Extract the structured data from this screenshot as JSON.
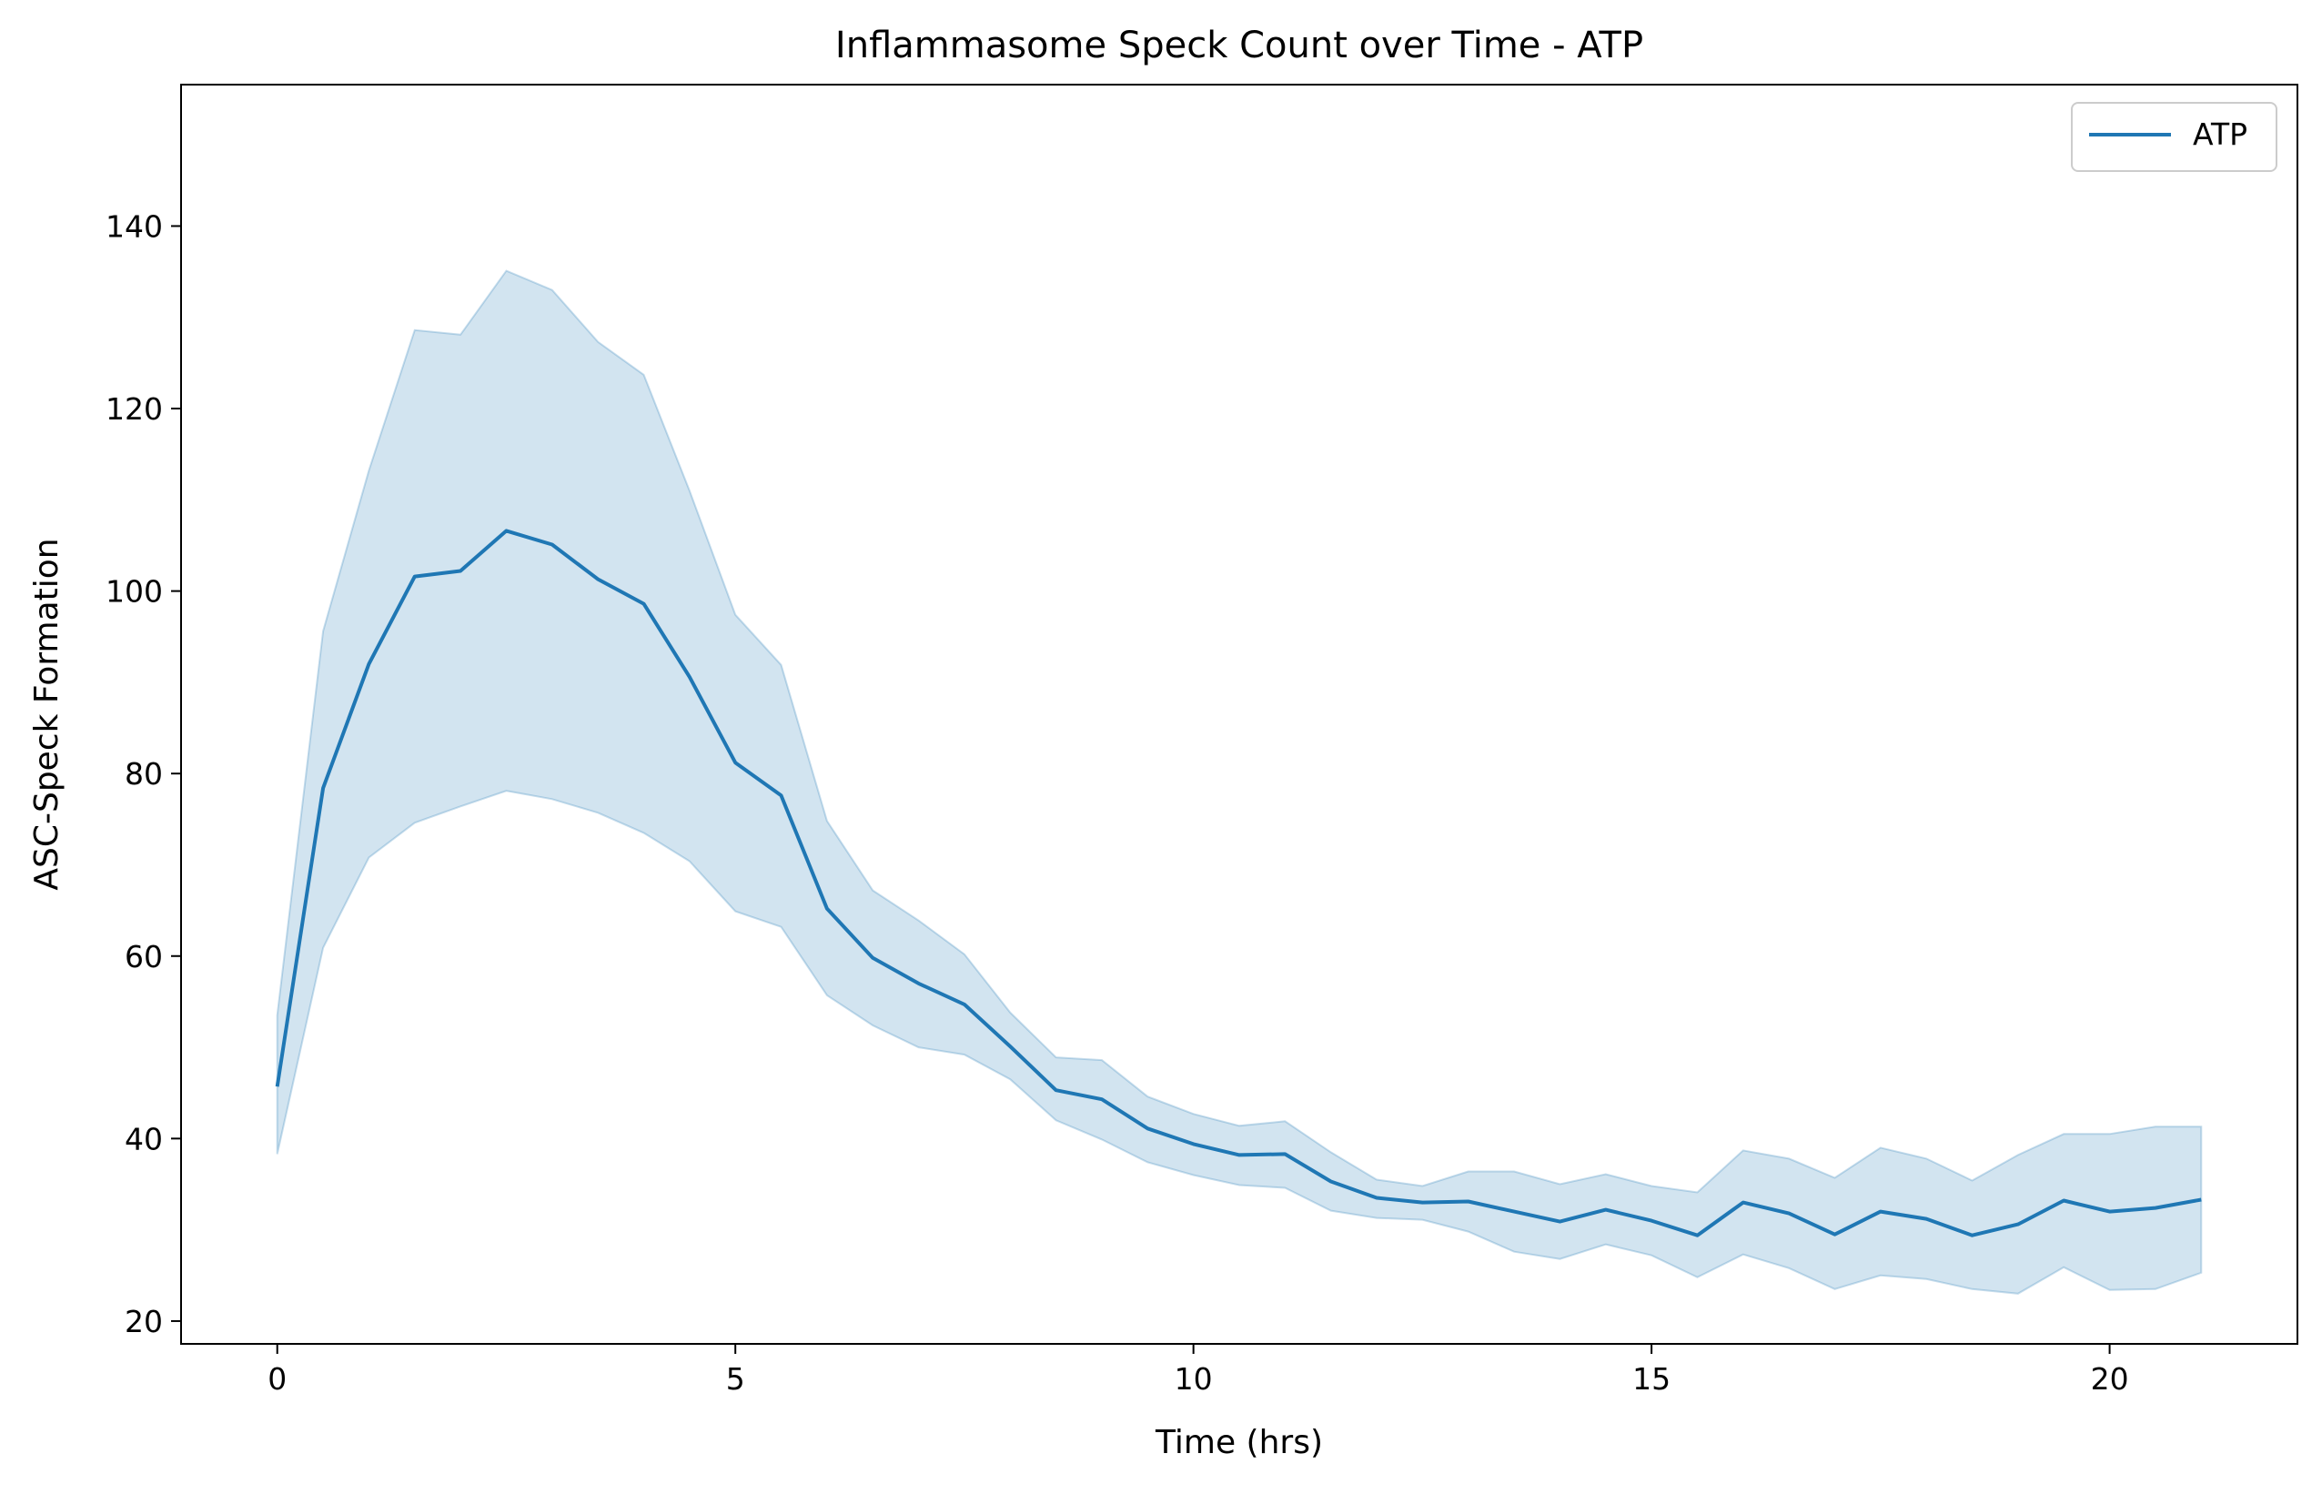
{
  "chart_data": {
    "type": "line",
    "title": "Inflammasome Speck Count over Time - ATP",
    "xlabel": "Time (hrs)",
    "ylabel": "ASC-Speck Formation",
    "xlim": [
      -1.05,
      22.05
    ],
    "ylim": [
      17.5,
      155.5
    ],
    "xticks": [
      0,
      5,
      10,
      15,
      20
    ],
    "yticks": [
      20,
      40,
      60,
      80,
      100,
      120,
      140
    ],
    "grid": false,
    "legend": "top-right",
    "colors": {
      "line": "#1f77b4",
      "band": "#1f77b4",
      "band_opacity": 0.2
    },
    "series": [
      {
        "name": "ATP",
        "x": [
          0,
          0.5,
          1,
          1.5,
          2,
          2.5,
          3,
          3.5,
          4,
          4.5,
          5,
          5.5,
          6,
          6.5,
          7,
          7.5,
          8,
          8.5,
          9,
          9.5,
          10,
          10.5,
          11,
          11.5,
          12,
          12.5,
          13,
          13.5,
          14,
          14.5,
          15,
          15.5,
          16,
          16.5,
          17,
          17.5,
          18,
          18.5,
          19,
          19.5,
          20,
          20.5,
          21
        ],
        "y": [
          45.7,
          78.4,
          92.0,
          101.6,
          102.2,
          106.6,
          105.1,
          101.3,
          98.6,
          90.6,
          81.2,
          77.6,
          65.2,
          59.8,
          57.0,
          54.7,
          50.1,
          45.3,
          44.3,
          41.1,
          39.4,
          38.2,
          38.3,
          35.3,
          33.5,
          33.0,
          33.1,
          32.0,
          30.9,
          32.2,
          31.0,
          29.4,
          33.0,
          31.8,
          29.5,
          32.0,
          31.2,
          29.4,
          30.6,
          33.2,
          32.0,
          32.4,
          33.3
        ],
        "ci_upper": [
          53.5,
          95.6,
          113.2,
          128.6,
          128.1,
          135.1,
          133.0,
          127.3,
          123.7,
          111.0,
          97.4,
          91.9,
          74.8,
          67.2,
          63.9,
          60.2,
          53.8,
          48.9,
          48.6,
          44.6,
          42.7,
          41.4,
          41.9,
          38.5,
          35.5,
          34.8,
          36.4,
          36.4,
          35.0,
          36.1,
          34.8,
          34.1,
          38.7,
          37.8,
          35.7,
          39.0,
          37.8,
          35.4,
          38.2,
          40.5,
          40.5,
          41.3,
          41.3
        ],
        "ci_lower": [
          38.3,
          60.9,
          70.8,
          74.6,
          76.4,
          78.1,
          77.2,
          75.7,
          73.5,
          70.4,
          64.9,
          63.2,
          55.7,
          52.4,
          50.0,
          49.2,
          46.5,
          42.0,
          39.9,
          37.4,
          36.0,
          34.9,
          34.6,
          32.1,
          31.3,
          31.1,
          29.8,
          27.6,
          26.8,
          28.4,
          27.2,
          24.8,
          27.3,
          25.8,
          23.5,
          25.0,
          24.6,
          23.5,
          23.0,
          25.9,
          23.4,
          23.5,
          25.3
        ]
      }
    ]
  }
}
